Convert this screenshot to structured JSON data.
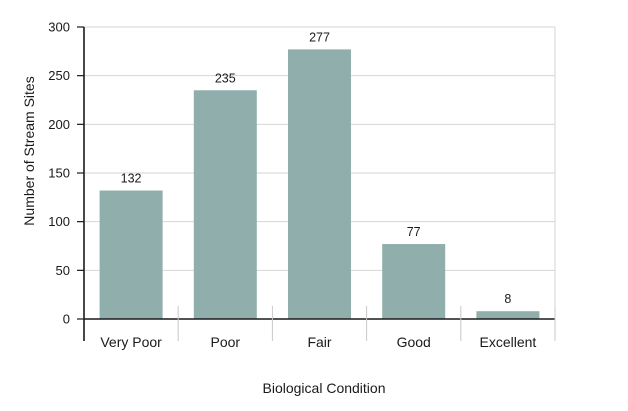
{
  "chart_data": {
    "type": "bar",
    "categories": [
      "Very Poor",
      "Poor",
      "Fair",
      "Good",
      "Excellent"
    ],
    "values": [
      132,
      235,
      277,
      77,
      8
    ],
    "data_labels": [
      "132",
      "235",
      "277",
      "77",
      "8"
    ],
    "xlabel": "Biological Condition",
    "ylabel": "Number of Stream Sites",
    "ylim": [
      0,
      300
    ],
    "yticks": [
      0,
      50,
      100,
      150,
      200,
      250,
      300
    ],
    "grid": "horizontal",
    "legend": "none",
    "bar_color": "#90aeab",
    "grid_color": "#d6d6d6",
    "axis_color": "#1a1a1a"
  }
}
